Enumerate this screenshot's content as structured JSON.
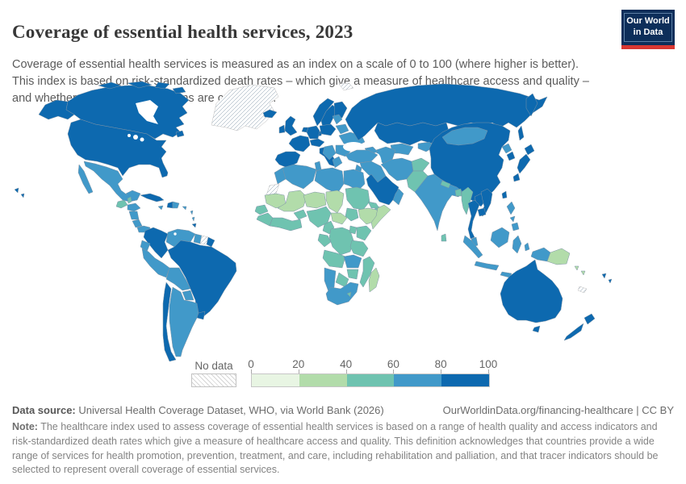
{
  "header": {
    "title": "Coverage of essential health services, 2023",
    "subtitle_lines": [
      "Coverage of essential health services is measured as an index on a scale of 0 to 100 (where higher is better).",
      "This index is based on risk-standardized death rates – which give a measure of healthcare access and quality –",
      "and whether common interventions are carried out."
    ],
    "logo": {
      "line1": "Our World",
      "line2": "in Data",
      "bg_color": "#0d2e5a",
      "stripe_color": "#d83732"
    }
  },
  "legend": {
    "no_data_label": "No data",
    "tick_labels": [
      "0",
      "20",
      "40",
      "60",
      "80",
      "100"
    ]
  },
  "footer": {
    "datasource_label": "Data source:",
    "datasource_text": " Universal Health Coverage Dataset, WHO, via World Bank (2026)",
    "link_text": "OurWorldinData.org/financing-healthcare | CC BY",
    "note_label": "Note:",
    "note_text": " The healthcare index used to assess coverage of essential health services is based on a range of health quality and access indicators and risk-standardized death rates which give a measure of healthcare access and quality. This definition acknowledges that countries provide a wide range of services for health promotion, prevention, treatment, and care, including rehabilitation and palliation, and that tracer indicators should be selected to represent overall coverage of essential services."
  },
  "chart_data": {
    "type": "choropleth-map",
    "title": "Coverage of essential health services",
    "year": "2023",
    "unit": "index (0-100)",
    "legend_position": "bottom",
    "scale": {
      "bins": [
        {
          "range": "0-20",
          "color": "#e8f5e3"
        },
        {
          "range": "20-40",
          "color": "#b2dcaa"
        },
        {
          "range": "40-60",
          "color": "#6fc3b0"
        },
        {
          "range": "60-80",
          "color": "#4199c9"
        },
        {
          "range": "80-100",
          "color": "#0d69af"
        },
        {
          "range": "no-data",
          "color": "hatch"
        }
      ]
    },
    "regions": [
      {
        "id": "canada",
        "range": "80-100"
      },
      {
        "id": "usa",
        "range": "80-100"
      },
      {
        "id": "hawaii",
        "range": "80-100"
      },
      {
        "id": "greenland",
        "range": "no-data"
      },
      {
        "id": "svalbard",
        "range": "no-data"
      },
      {
        "id": "mexico",
        "range": "60-80"
      },
      {
        "id": "guatemala",
        "range": "40-60"
      },
      {
        "id": "belize",
        "range": "40-60"
      },
      {
        "id": "honduras",
        "range": "60-80"
      },
      {
        "id": "nicaragua",
        "range": "60-80"
      },
      {
        "id": "costa-rica",
        "range": "60-80"
      },
      {
        "id": "panama",
        "range": "60-80"
      },
      {
        "id": "cuba",
        "range": "80-100"
      },
      {
        "id": "jamaica",
        "range": "60-80"
      },
      {
        "id": "haiti",
        "range": "80-100"
      },
      {
        "id": "dominican-republic",
        "range": "60-80"
      },
      {
        "id": "puerto-rico",
        "range": "60-80"
      },
      {
        "id": "lesser-antilles",
        "range": "60-80"
      },
      {
        "id": "trinidad",
        "range": "80-100"
      },
      {
        "id": "colombia",
        "range": "80-100"
      },
      {
        "id": "venezuela",
        "range": "60-80"
      },
      {
        "id": "guyana",
        "range": "60-80"
      },
      {
        "id": "suriname",
        "range": "no-data"
      },
      {
        "id": "french-guiana",
        "range": "80-100"
      },
      {
        "id": "ecuador",
        "range": "60-80"
      },
      {
        "id": "peru",
        "range": "60-80"
      },
      {
        "id": "bolivia",
        "range": "60-80"
      },
      {
        "id": "paraguay",
        "range": "60-80"
      },
      {
        "id": "brazil",
        "range": "80-100"
      },
      {
        "id": "chile",
        "range": "80-100"
      },
      {
        "id": "argentina",
        "range": "60-80"
      },
      {
        "id": "uruguay",
        "range": "80-100"
      },
      {
        "id": "iceland",
        "range": "80-100"
      },
      {
        "id": "norway",
        "range": "80-100"
      },
      {
        "id": "sweden",
        "range": "80-100"
      },
      {
        "id": "finland",
        "range": "80-100"
      },
      {
        "id": "denmark",
        "range": "80-100"
      },
      {
        "id": "united-kingdom",
        "range": "80-100"
      },
      {
        "id": "ireland",
        "range": "80-100"
      },
      {
        "id": "france",
        "range": "80-100"
      },
      {
        "id": "spain-portugal",
        "range": "80-100"
      },
      {
        "id": "germany",
        "range": "80-100"
      },
      {
        "id": "benelux",
        "range": "80-100"
      },
      {
        "id": "central-europe",
        "range": "80-100"
      },
      {
        "id": "italy",
        "range": "80-100"
      },
      {
        "id": "poland",
        "range": "80-100"
      },
      {
        "id": "baltics",
        "range": "60-80"
      },
      {
        "id": "belarus",
        "range": "60-80"
      },
      {
        "id": "ukraine",
        "range": "60-80"
      },
      {
        "id": "romania-bulgaria",
        "range": "60-80"
      },
      {
        "id": "balkans",
        "range": "60-80"
      },
      {
        "id": "greece",
        "range": "60-80"
      },
      {
        "id": "russia",
        "range": "80-100"
      },
      {
        "id": "kazakhstan",
        "range": "80-100"
      },
      {
        "id": "turkmenistan-uzbekistan",
        "range": "60-80"
      },
      {
        "id": "kyrgyzstan-tajikistan",
        "range": "60-80"
      },
      {
        "id": "caucasus",
        "range": "60-80"
      },
      {
        "id": "turkey",
        "range": "60-80"
      },
      {
        "id": "syria-iraq",
        "range": "60-80"
      },
      {
        "id": "israel-jordan",
        "range": "60-80"
      },
      {
        "id": "saudi-arabia",
        "range": "80-100"
      },
      {
        "id": "yemen",
        "range": "40-60"
      },
      {
        "id": "oman",
        "range": "60-80"
      },
      {
        "id": "iran",
        "range": "60-80"
      },
      {
        "id": "afghanistan",
        "range": "40-60"
      },
      {
        "id": "pakistan",
        "range": "40-60"
      },
      {
        "id": "india",
        "range": "60-80"
      },
      {
        "id": "nepal",
        "range": "40-60"
      },
      {
        "id": "bangladesh",
        "range": "40-60"
      },
      {
        "id": "sri-lanka",
        "range": "40-60"
      },
      {
        "id": "myanmar",
        "range": "40-60"
      },
      {
        "id": "thailand",
        "range": "80-100"
      },
      {
        "id": "laos",
        "range": "80-100"
      },
      {
        "id": "vietnam",
        "range": "80-100"
      },
      {
        "id": "cambodia",
        "range": "80-100"
      },
      {
        "id": "malaysia",
        "range": "60-80"
      },
      {
        "id": "sumatra",
        "range": "60-80"
      },
      {
        "id": "java",
        "range": "60-80"
      },
      {
        "id": "borneo",
        "range": "60-80"
      },
      {
        "id": "sulawesi",
        "range": "60-80"
      },
      {
        "id": "lesser-sunda",
        "range": "60-80"
      },
      {
        "id": "moluccas",
        "range": "60-80"
      },
      {
        "id": "philippines",
        "range": "60-80"
      },
      {
        "id": "west-papua",
        "range": "60-80"
      },
      {
        "id": "papua-new-guinea",
        "range": "20-40"
      },
      {
        "id": "solomon-islands",
        "range": "20-40"
      },
      {
        "id": "china",
        "range": "80-100"
      },
      {
        "id": "mongolia",
        "range": "60-80"
      },
      {
        "id": "north-korea",
        "range": "60-80"
      },
      {
        "id": "south-korea",
        "range": "80-100"
      },
      {
        "id": "japan",
        "range": "80-100"
      },
      {
        "id": "taiwan",
        "range": "80-100"
      },
      {
        "id": "australia",
        "range": "80-100"
      },
      {
        "id": "new-zealand",
        "range": "80-100"
      },
      {
        "id": "fiji",
        "range": "80-100"
      },
      {
        "id": "new-caledonia",
        "range": "no-data"
      },
      {
        "id": "morocco",
        "range": "60-80"
      },
      {
        "id": "western-sahara",
        "range": "no-data"
      },
      {
        "id": "algeria",
        "range": "60-80"
      },
      {
        "id": "tunisia",
        "range": "60-80"
      },
      {
        "id": "libya",
        "range": "60-80"
      },
      {
        "id": "egypt",
        "range": "60-80"
      },
      {
        "id": "mauritania",
        "range": "20-40"
      },
      {
        "id": "senegal",
        "range": "40-60"
      },
      {
        "id": "mali",
        "range": "20-40"
      },
      {
        "id": "niger",
        "range": "20-40"
      },
      {
        "id": "chad",
        "range": "20-40"
      },
      {
        "id": "sudan",
        "range": "40-60"
      },
      {
        "id": "eritrea",
        "range": "40-60"
      },
      {
        "id": "ethiopia",
        "range": "20-40"
      },
      {
        "id": "somalia",
        "range": "20-40"
      },
      {
        "id": "south-sudan",
        "range": "40-60"
      },
      {
        "id": "central-african-republic",
        "range": "20-40"
      },
      {
        "id": "guinea",
        "range": "40-60"
      },
      {
        "id": "burkina-faso",
        "range": "40-60"
      },
      {
        "id": "ghana-cote-divoire",
        "range": "40-60"
      },
      {
        "id": "nigeria",
        "range": "40-60"
      },
      {
        "id": "cameroon",
        "range": "40-60"
      },
      {
        "id": "gabon-congo",
        "range": "40-60"
      },
      {
        "id": "drc",
        "range": "40-60"
      },
      {
        "id": "uganda",
        "range": "40-60"
      },
      {
        "id": "kenya",
        "range": "40-60"
      },
      {
        "id": "tanzania",
        "range": "40-60"
      },
      {
        "id": "angola",
        "range": "40-60"
      },
      {
        "id": "zambia",
        "range": "60-80"
      },
      {
        "id": "mozambique",
        "range": "40-60"
      },
      {
        "id": "zimbabwe",
        "range": "40-60"
      },
      {
        "id": "botswana",
        "range": "40-60"
      },
      {
        "id": "namibia",
        "range": "60-80"
      },
      {
        "id": "south-africa",
        "range": "60-80"
      },
      {
        "id": "lesotho",
        "range": "40-60"
      },
      {
        "id": "madagascar",
        "range": "20-40"
      }
    ]
  }
}
